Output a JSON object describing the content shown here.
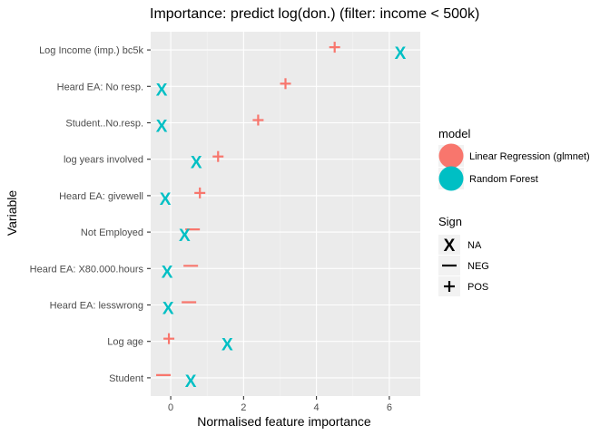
{
  "chart_data": {
    "type": "scatter",
    "title": "Importance: predict log(don.) (filter: income < 500k)",
    "xlabel": "Normalised feature importance",
    "ylabel": "Variable",
    "xlim": [
      -0.55,
      6.85
    ],
    "x_ticks": [
      0,
      2,
      4,
      6
    ],
    "grid": true,
    "categories": [
      "Log Income (imp.) bc5k",
      "Heard EA: No resp.",
      "Student..No.resp.",
      "log years involved",
      "Heard EA: givewell",
      "Not Employed",
      "Heard EA: X80.000.hours",
      "Heard EA: lesswrong",
      "Log age",
      "Student"
    ],
    "series": [
      {
        "name": "Linear Regression (glmnet)",
        "color": "#f8766d",
        "points": [
          {
            "category": "Log Income (imp.) bc5k",
            "x": 4.5,
            "sign": "POS"
          },
          {
            "category": "Heard EA: No resp.",
            "x": 3.15,
            "sign": "POS"
          },
          {
            "category": "Student..No.resp.",
            "x": 2.4,
            "sign": "POS"
          },
          {
            "category": "log years involved",
            "x": 1.3,
            "sign": "POS"
          },
          {
            "category": "Heard EA: givewell",
            "x": 0.8,
            "sign": "POS"
          },
          {
            "category": "Not Employed",
            "x": 0.6,
            "sign": "NEG"
          },
          {
            "category": "Heard EA: X80.000.hours",
            "x": 0.55,
            "sign": "NEG"
          },
          {
            "category": "Heard EA: lesswrong",
            "x": 0.5,
            "sign": "NEG"
          },
          {
            "category": "Log age",
            "x": -0.05,
            "sign": "POS"
          },
          {
            "category": "Student",
            "x": -0.2,
            "sign": "NEG"
          }
        ]
      },
      {
        "name": "Random Forest",
        "color": "#00bfc4",
        "points": [
          {
            "category": "Log Income (imp.) bc5k",
            "x": 6.3,
            "sign": "NA"
          },
          {
            "category": "Heard EA: No resp.",
            "x": -0.25,
            "sign": "NA"
          },
          {
            "category": "Student..No.resp.",
            "x": -0.25,
            "sign": "NA"
          },
          {
            "category": "log years involved",
            "x": 0.7,
            "sign": "NA"
          },
          {
            "category": "Heard EA: givewell",
            "x": -0.15,
            "sign": "NA"
          },
          {
            "category": "Not Employed",
            "x": 0.38,
            "sign": "NA"
          },
          {
            "category": "Heard EA: X80.000.hours",
            "x": -0.1,
            "sign": "NA"
          },
          {
            "category": "Heard EA: lesswrong",
            "x": -0.07,
            "sign": "NA"
          },
          {
            "category": "Log age",
            "x": 1.55,
            "sign": "NA"
          },
          {
            "category": "Student",
            "x": 0.55,
            "sign": "NA"
          }
        ]
      }
    ],
    "legends": [
      {
        "title": "model",
        "entries": [
          {
            "label": "Linear Regression (glmnet)",
            "color": "#f8766d"
          },
          {
            "label": "Random Forest",
            "color": "#00bfc4"
          }
        ]
      },
      {
        "title": "Sign",
        "entries": [
          {
            "label": "NA",
            "glyph": "X"
          },
          {
            "label": "NEG",
            "glyph": "—"
          },
          {
            "label": "POS",
            "glyph": "+"
          }
        ]
      }
    ],
    "legend_position": "right"
  }
}
